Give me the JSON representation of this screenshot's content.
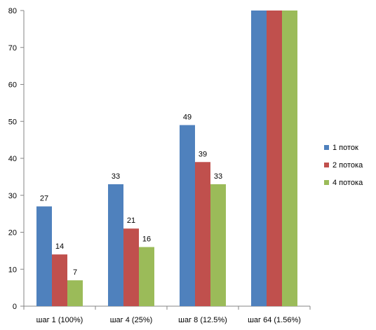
{
  "chart_data": {
    "type": "bar",
    "categories": [
      "шаг 1 (100%)",
      "шаг 4 (25%)",
      "шаг 8 (12.5%)",
      "шаг 64 (1.56%)"
    ],
    "series": [
      {
        "name": "1 поток",
        "values": [
          27,
          33,
          49,
          80
        ],
        "labels": [
          "27",
          "33",
          "49",
          ""
        ],
        "color": "#4F81BD"
      },
      {
        "name": "2 потока",
        "values": [
          14,
          21,
          39,
          80
        ],
        "labels": [
          "14",
          "21",
          "39",
          ""
        ],
        "color": "#C0504D"
      },
      {
        "name": "4 потока",
        "values": [
          7,
          16,
          33,
          80
        ],
        "labels": [
          "7",
          "16",
          "33",
          ""
        ],
        "color": "#9BBB59"
      }
    ],
    "ylim": [
      0,
      80
    ],
    "yticks": [
      "0",
      "10",
      "20",
      "30",
      "40",
      "50",
      "60",
      "70",
      "80"
    ],
    "grid": false,
    "legend_position": "right"
  }
}
